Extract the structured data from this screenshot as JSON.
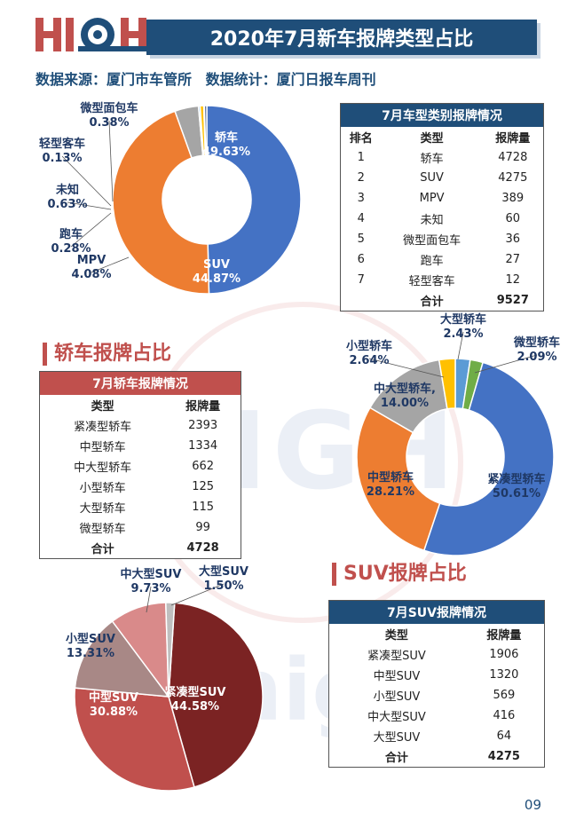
{
  "header": {
    "logo": "HIGH",
    "title": "2020年7月新车报牌类型占比",
    "source_label": "数据来源：厦门市车管所",
    "stat_label": "数据统计：厦门日报车周刊"
  },
  "section_sedan_title": "轿车报牌占比",
  "section_suv_title": "SUV报牌占比",
  "page_number": "09",
  "colors": {
    "navy": "#1f4e79",
    "red": "#c0504d"
  },
  "tables": {
    "types": {
      "title": "7月车型类别报牌情况",
      "headers": [
        "排名",
        "类型",
        "报牌量"
      ],
      "rows": [
        [
          "1",
          "轿车",
          "4728"
        ],
        [
          "2",
          "SUV",
          "4275"
        ],
        [
          "3",
          "MPV",
          "389"
        ],
        [
          "4",
          "未知",
          "60"
        ],
        [
          "5",
          "微型面包车",
          "36"
        ],
        [
          "6",
          "跑车",
          "27"
        ],
        [
          "7",
          "轻型客车",
          "12"
        ]
      ],
      "total_label": "合计",
      "total": "9527"
    },
    "sedan": {
      "title": "7月轿车报牌情况",
      "headers": [
        "类型",
        "报牌量"
      ],
      "rows": [
        [
          "紧凑型轿车",
          "2393"
        ],
        [
          "中型轿车",
          "1334"
        ],
        [
          "中大型轿车",
          "662"
        ],
        [
          "小型轿车",
          "125"
        ],
        [
          "大型轿车",
          "115"
        ],
        [
          "微型轿车",
          "99"
        ]
      ],
      "total_label": "合计",
      "total": "4728"
    },
    "suv": {
      "title": "7月SUV报牌情况",
      "headers": [
        "类型",
        "报牌量"
      ],
      "rows": [
        [
          "紧凑型SUV",
          "1906"
        ],
        [
          "中型SUV",
          "1320"
        ],
        [
          "小型SUV",
          "569"
        ],
        [
          "中大型SUV",
          "416"
        ],
        [
          "大型SUV",
          "64"
        ]
      ],
      "total_label": "合计",
      "total": "4275"
    }
  },
  "chart_data": [
    {
      "type": "pie",
      "donut": true,
      "slices": [
        {
          "label": "轿车",
          "pct": "49.63%",
          "value": 49.63,
          "color": "#4472c4"
        },
        {
          "label": "SUV",
          "pct": "44.87%",
          "value": 44.87,
          "color": "#ed7d31"
        },
        {
          "label": "MPV",
          "pct": "4.08%",
          "value": 4.08,
          "color": "#a5a5a5"
        },
        {
          "label": "跑车",
          "pct": "0.28%",
          "value": 0.28,
          "color": "#5b9bd5"
        },
        {
          "label": "未知",
          "pct": "0.63%",
          "value": 0.63,
          "color": "#ffc000"
        },
        {
          "label": "轻型客车",
          "pct": "0.13%",
          "value": 0.13,
          "color": "#70ad47"
        },
        {
          "label": "微型面包车",
          "pct": "0.38%",
          "value": 0.38,
          "color": "#264478"
        }
      ]
    },
    {
      "type": "pie",
      "donut": true,
      "slices": [
        {
          "label": "紧凑型轿车",
          "pct": "50.61%",
          "value": 50.61,
          "color": "#4472c4"
        },
        {
          "label": "中型轿车",
          "pct": "28.21%",
          "value": 28.21,
          "color": "#ed7d31"
        },
        {
          "label": "中大型轿车,",
          "pct": "14.00%",
          "value": 14.0,
          "color": "#a5a5a5"
        },
        {
          "label": "小型轿车",
          "pct": "2.64%",
          "value": 2.64,
          "color": "#ffc000"
        },
        {
          "label": "大型轿车",
          "pct": "2.43%",
          "value": 2.43,
          "color": "#5b9bd5"
        },
        {
          "label": "微型轿车",
          "pct": "2.09%",
          "value": 2.09,
          "color": "#70ad47"
        }
      ]
    },
    {
      "type": "pie",
      "donut": false,
      "slices": [
        {
          "label": "紧凑型SUV",
          "pct": "44.58%",
          "value": 44.58,
          "color": "#7b2323"
        },
        {
          "label": "中型SUV",
          "pct": "30.88%",
          "value": 30.88,
          "color": "#c0504d"
        },
        {
          "label": "小型SUV",
          "pct": "13.31%",
          "value": 13.31,
          "color": "#a88886"
        },
        {
          "label": "中大型SUV",
          "pct": "9.73%",
          "value": 9.73,
          "color": "#d98a8a"
        },
        {
          "label": "大型SUV",
          "pct": "1.50%",
          "value": 1.5,
          "color": "#bfbfbf"
        }
      ]
    }
  ]
}
